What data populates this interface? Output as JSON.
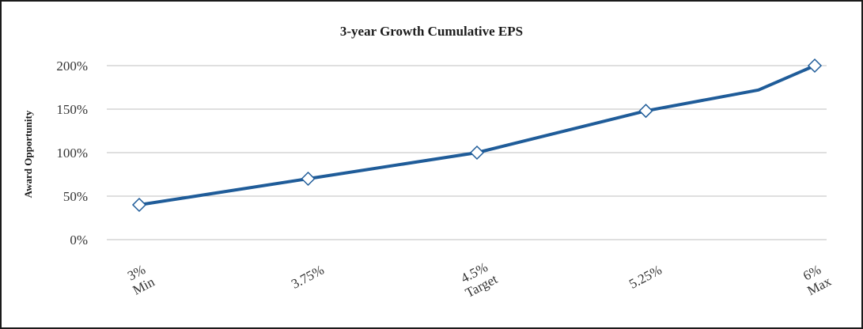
{
  "chart_data": {
    "type": "line",
    "title": "3-year Growth Cumulative EPS",
    "xlabel": "",
    "ylabel": "Award Opportunity",
    "categories": [
      [
        "3%",
        "Min"
      ],
      [
        "3.75%"
      ],
      [
        "4.5%",
        "Target"
      ],
      [
        "5.25%"
      ],
      [
        "6%",
        "Max"
      ]
    ],
    "x": [
      3,
      3.75,
      4.5,
      5.25,
      6,
      5.75
    ],
    "series": [
      {
        "points": [
          {
            "x": 3,
            "y": 40,
            "marker": true
          },
          {
            "x": 3.75,
            "y": 70,
            "marker": true
          },
          {
            "x": 4.5,
            "y": 100,
            "marker": true
          },
          {
            "x": 5.25,
            "y": 148,
            "marker": true
          },
          {
            "x": 5.75,
            "y": 172,
            "marker": false
          },
          {
            "x": 6,
            "y": 200,
            "marker": true
          }
        ]
      }
    ],
    "ylim": [
      0,
      200
    ],
    "yticks": [
      0,
      50,
      100,
      150,
      200
    ],
    "ytick_labels": [
      "0%",
      "50%",
      "100%",
      "150%",
      "200%"
    ],
    "grid": true,
    "colors": {
      "line": "#1f5c99",
      "marker_fill": "#ffffff",
      "grid": "#bfbfbf"
    }
  }
}
